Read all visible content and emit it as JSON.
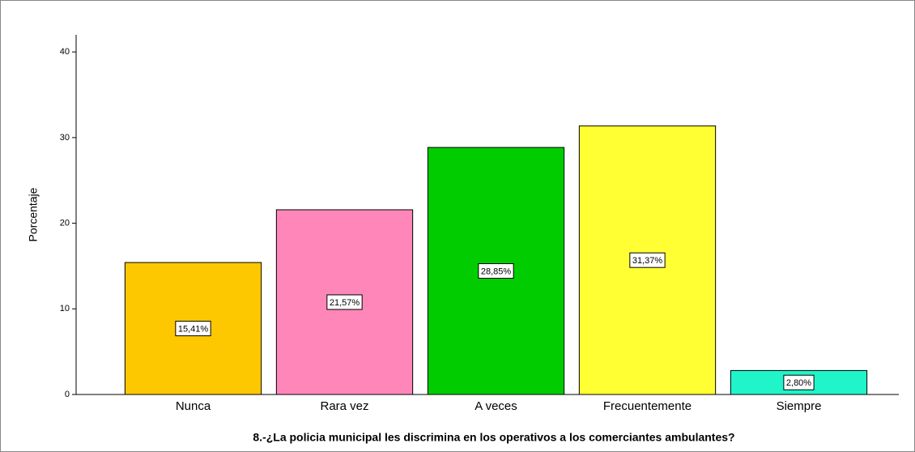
{
  "chart_data": {
    "type": "bar",
    "x_label": "8.-¿La policia municipal les discrimina en los operativos a los comerciantes ambulantes?",
    "y_label": "Porcentaje",
    "categories": [
      "Nunca",
      "Rara vez",
      "A veces",
      "Frecuentemente",
      "Siempre"
    ],
    "values": [
      15.41,
      21.57,
      28.85,
      31.37,
      2.8
    ],
    "value_labels": [
      "15,41%",
      "21,57%",
      "28,85%",
      "31,37%",
      "2,80%"
    ],
    "colors": [
      "#fec800",
      "#ff86b8",
      "#00cc00",
      "#ffff33",
      "#1ff5c8"
    ],
    "ylim": [
      0,
      42
    ],
    "yticks": [
      0,
      10,
      20,
      30,
      40
    ],
    "grid": false
  }
}
